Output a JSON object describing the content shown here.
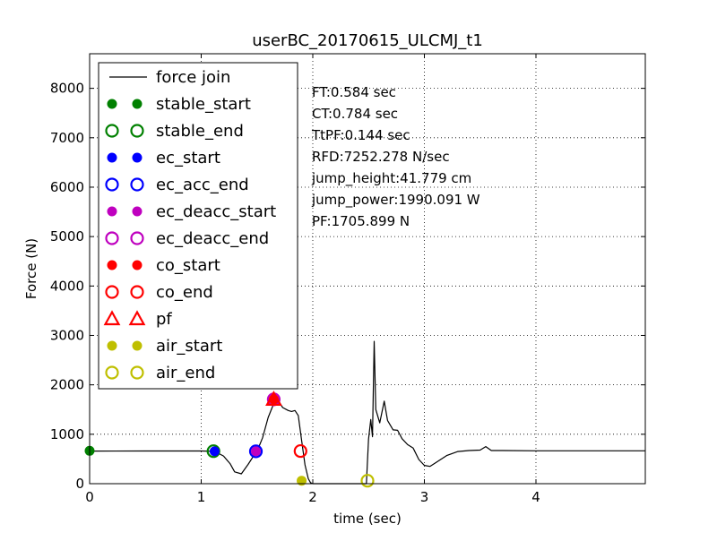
{
  "chart_data": {
    "type": "line",
    "title": "userBC_20170615_ULCMJ_t1",
    "xlabel": "time (sec)",
    "ylabel": "Force (N)",
    "xlim": [
      0,
      4.98
    ],
    "ylim": [
      0,
      8700
    ],
    "x_ticks": [
      0,
      1,
      2,
      3,
      4
    ],
    "y_ticks": [
      0,
      1000,
      2000,
      3000,
      4000,
      5000,
      6000,
      7000,
      8000
    ],
    "grid": true,
    "legend_position": "upper-left",
    "series": [
      {
        "name": "force join",
        "color": "#000000",
        "x": [
          0,
          0.5,
          1.0,
          1.12,
          1.2,
          1.26,
          1.3,
          1.36,
          1.42,
          1.48,
          1.5,
          1.55,
          1.6,
          1.65,
          1.7,
          1.73,
          1.78,
          1.81,
          1.84,
          1.87,
          1.9,
          1.93,
          1.96,
          1.98,
          2.0,
          2.2,
          2.45,
          2.48,
          2.5,
          2.52,
          2.535,
          2.55,
          2.565,
          2.6,
          2.64,
          2.67,
          2.72,
          2.76,
          2.8,
          2.85,
          2.9,
          2.95,
          3.0,
          3.05,
          3.1,
          3.2,
          3.3,
          3.4,
          3.5,
          3.55,
          3.6,
          3.7,
          4.0,
          4.5,
          4.98
        ],
        "y": [
          660,
          662,
          661,
          655,
          560,
          400,
          240,
          200,
          390,
          600,
          650,
          930,
          1340,
          1620,
          1650,
          1540,
          1480,
          1460,
          1480,
          1380,
          880,
          380,
          100,
          20,
          0,
          0,
          0,
          0,
          900,
          1300,
          950,
          2880,
          1500,
          1230,
          1670,
          1280,
          1090,
          1080,
          910,
          790,
          720,
          490,
          370,
          350,
          420,
          570,
          650,
          670,
          680,
          750,
          670,
          670,
          665,
          665,
          665
        ]
      }
    ],
    "events": [
      {
        "name": "stable_start",
        "marker": "filled-circle",
        "color": "#008000",
        "x": 0.0,
        "y": 665
      },
      {
        "name": "stable_end",
        "marker": "open-circle",
        "color": "#008000",
        "x": 1.11,
        "y": 658
      },
      {
        "name": "ec_start",
        "marker": "filled-circle",
        "color": "#0000ff",
        "x": 1.12,
        "y": 655
      },
      {
        "name": "ec_acc_end",
        "marker": "open-circle",
        "color": "#0000ff",
        "x": 1.49,
        "y": 655
      },
      {
        "name": "ec_deacc_start",
        "marker": "filled-circle",
        "color": "#bf00bf",
        "x": 1.49,
        "y": 655
      },
      {
        "name": "ec_deacc_end",
        "marker": "open-circle",
        "color": "#bf00bf",
        "x": 1.65,
        "y": 1706
      },
      {
        "name": "co_start",
        "marker": "filled-circle",
        "color": "#ff0000",
        "x": 1.65,
        "y": 1706
      },
      {
        "name": "co_end",
        "marker": "open-circle",
        "color": "#ff0000",
        "x": 1.89,
        "y": 660
      },
      {
        "name": "pf",
        "marker": "open-triangle",
        "color": "#ff0000",
        "x": 1.65,
        "y": 1706
      },
      {
        "name": "air_start",
        "marker": "filled-circle",
        "color": "#bfbf00",
        "x": 1.9,
        "y": 60
      },
      {
        "name": "air_end",
        "marker": "open-circle",
        "color": "#bfbf00",
        "x": 2.49,
        "y": 60
      }
    ],
    "legend": [
      {
        "label": "force join",
        "kind": "line",
        "color": "#000000"
      },
      {
        "label": "stable_start",
        "kind": "filled-circle",
        "color": "#008000"
      },
      {
        "label": "stable_end",
        "kind": "open-circle",
        "color": "#008000"
      },
      {
        "label": "ec_start",
        "kind": "filled-circle",
        "color": "#0000ff"
      },
      {
        "label": "ec_acc_end",
        "kind": "open-circle",
        "color": "#0000ff"
      },
      {
        "label": "ec_deacc_start",
        "kind": "filled-circle",
        "color": "#bf00bf"
      },
      {
        "label": "ec_deacc_end",
        "kind": "open-circle",
        "color": "#bf00bf"
      },
      {
        "label": "co_start",
        "kind": "filled-circle",
        "color": "#ff0000"
      },
      {
        "label": "co_end",
        "kind": "open-circle",
        "color": "#ff0000"
      },
      {
        "label": "pf",
        "kind": "open-triangle",
        "color": "#ff0000"
      },
      {
        "label": "air_start",
        "kind": "filled-circle",
        "color": "#bfbf00"
      },
      {
        "label": "air_end",
        "kind": "open-circle",
        "color": "#bfbf00"
      }
    ],
    "annotations": [
      "FT:0.584 sec",
      "CT:0.784 sec",
      "TtPF:0.144 sec",
      "RFD:7252.278 N/sec",
      "jump_height:41.779 cm",
      "jump_power:1990.091 W",
      "PF:1705.899 N"
    ]
  }
}
